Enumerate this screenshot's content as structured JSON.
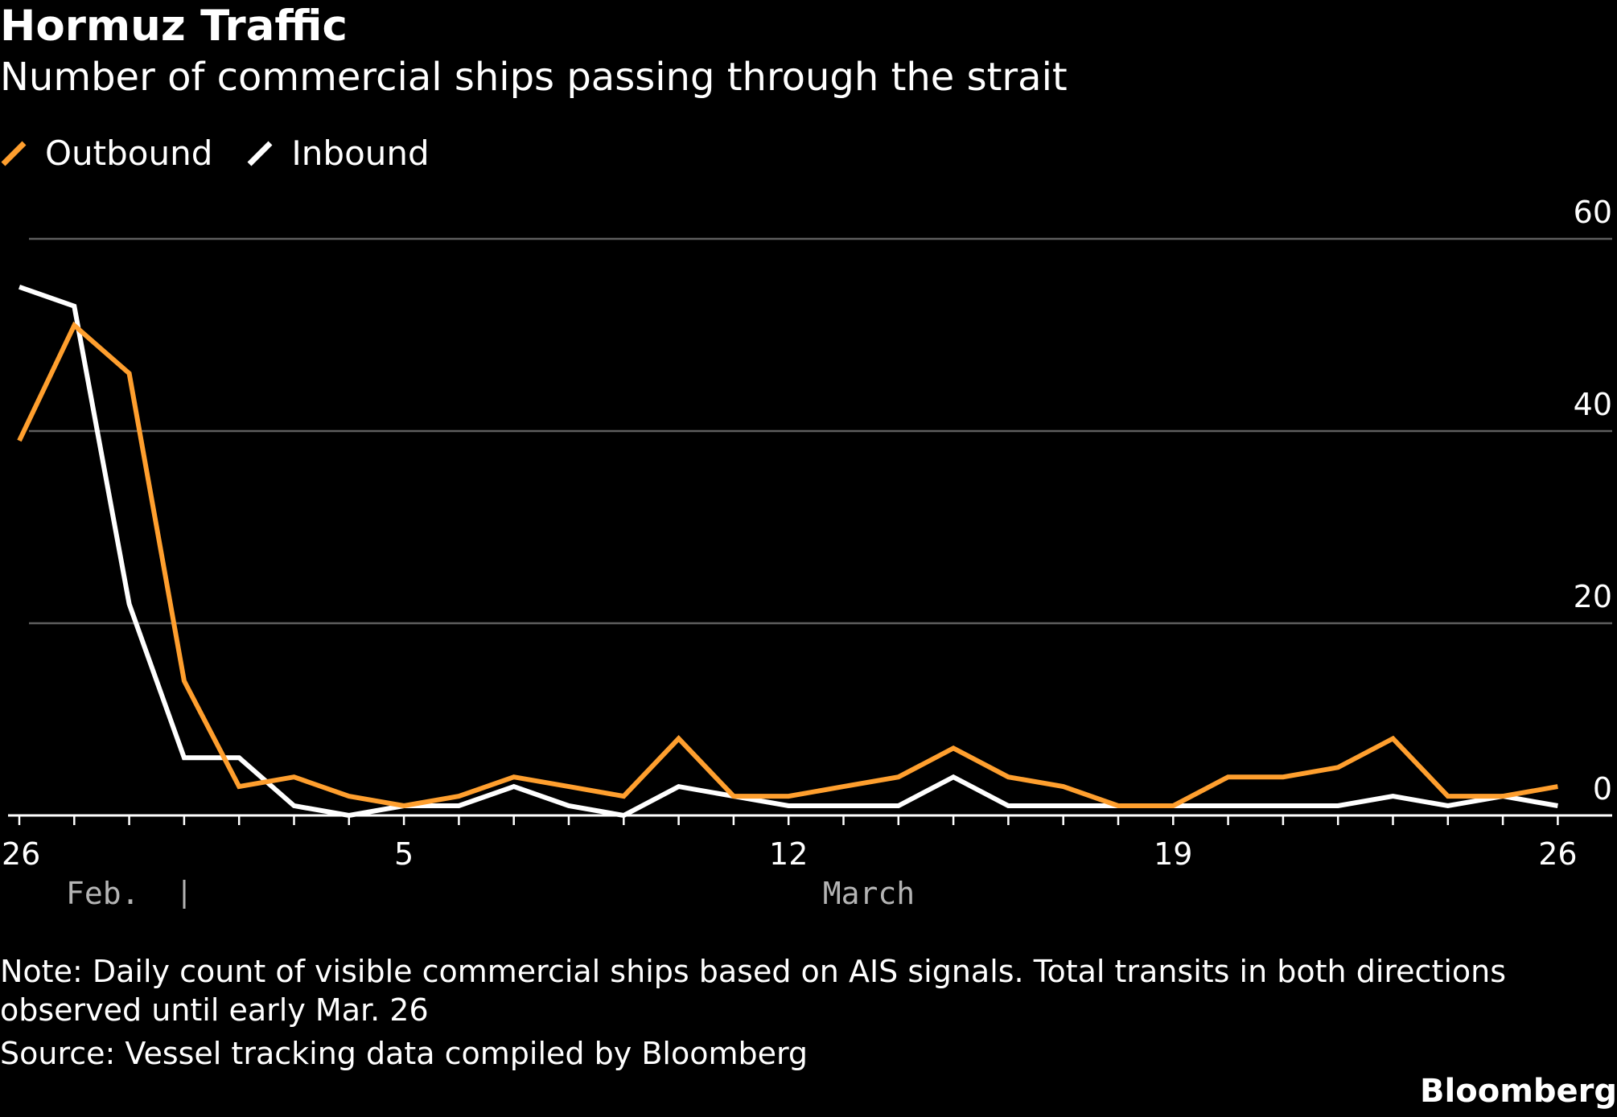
{
  "header": {
    "title": "Hormuz Traffic",
    "subtitle": "Number of commercial ships passing through the strait"
  },
  "legend": [
    {
      "label": "Outbound",
      "color": "#ff9f2e"
    },
    {
      "label": "Inbound",
      "color": "#ffffff"
    }
  ],
  "chart_data": {
    "type": "line",
    "title": "Hormuz Traffic",
    "subtitle": "Number of commercial ships passing through the strait",
    "x": [
      "Feb 26",
      "Feb 27",
      "Feb 28",
      "Mar 1",
      "Mar 2",
      "Mar 3",
      "Mar 4",
      "Mar 5",
      "Mar 6",
      "Mar 7",
      "Mar 8",
      "Mar 9",
      "Mar 10",
      "Mar 11",
      "Mar 12",
      "Mar 13",
      "Mar 14",
      "Mar 15",
      "Mar 16",
      "Mar 17",
      "Mar 18",
      "Mar 19",
      "Mar 20",
      "Mar 21",
      "Mar 22",
      "Mar 23",
      "Mar 24",
      "Mar 25",
      "Mar 26"
    ],
    "series": [
      {
        "name": "Outbound",
        "color": "#ff9f2e",
        "values": [
          39,
          51,
          46,
          14,
          3,
          4,
          2,
          1,
          2,
          4,
          3,
          2,
          8,
          2,
          2,
          3,
          4,
          7,
          4,
          3,
          1,
          1,
          4,
          4,
          5,
          8,
          2,
          2,
          3
        ]
      },
      {
        "name": "Inbound",
        "color": "#ffffff",
        "values": [
          55,
          53,
          22,
          6,
          6,
          1,
          0,
          1,
          1,
          3,
          1,
          0,
          3,
          2,
          1,
          1,
          1,
          4,
          1,
          1,
          1,
          1,
          1,
          1,
          1,
          2,
          1,
          2,
          1
        ]
      }
    ],
    "ylim": [
      0,
      60
    ],
    "yticks": [
      "0",
      "20",
      "40",
      "60"
    ],
    "xtick_labels": [
      "26",
      "5",
      "12",
      "19",
      "26"
    ],
    "month_labels": [
      "Feb.",
      "March"
    ],
    "grid": true,
    "legend_position": "top-left"
  },
  "footer": {
    "note": "Note: Daily count of visible commercial ships based on AIS signals. Total transits in both directions observed until early Mar. 26",
    "source": "Source: Vessel tracking data compiled by Bloomberg",
    "brand": "Bloomberg"
  }
}
